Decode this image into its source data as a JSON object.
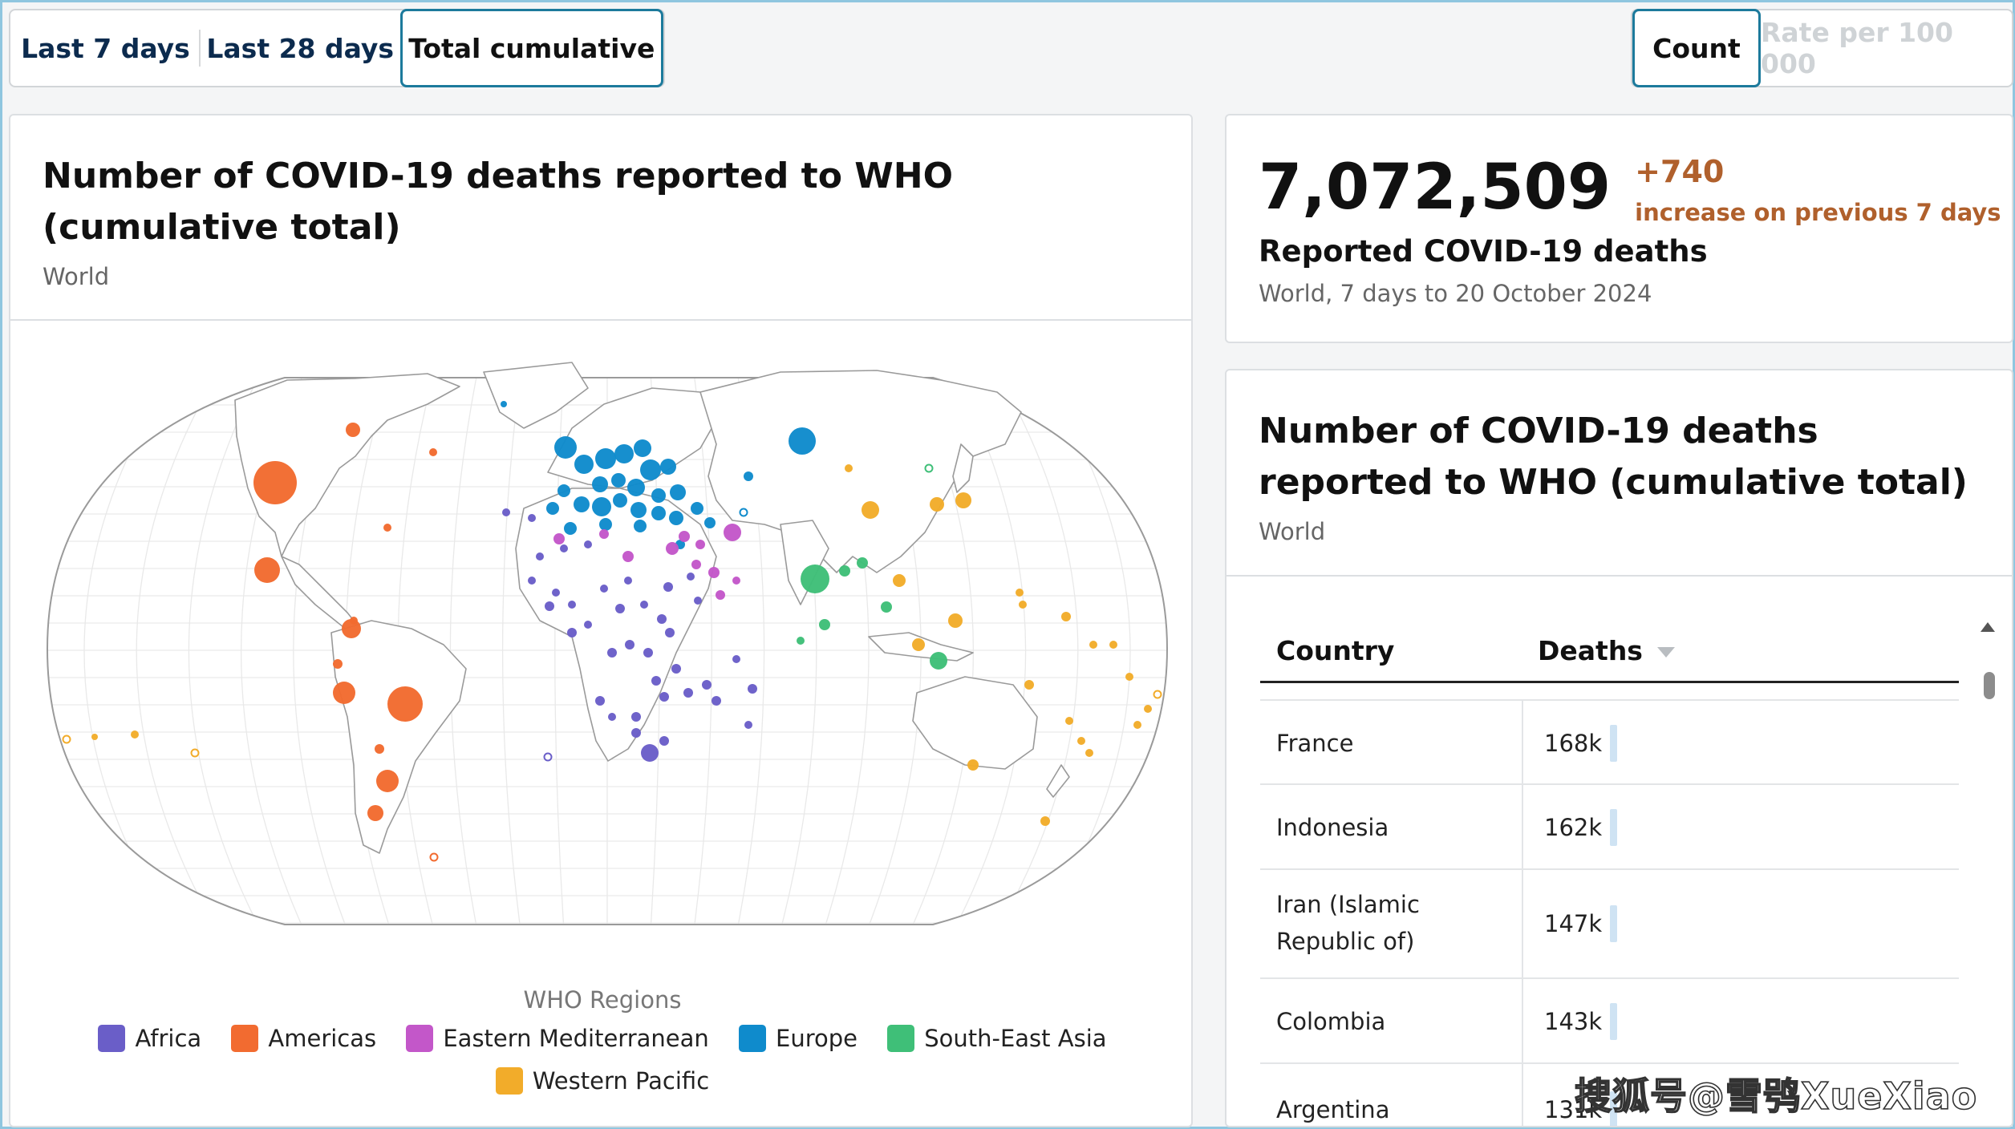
{
  "period_tabs": [
    "Last 7 days",
    "Last 28 days",
    "Total cumulative"
  ],
  "active_period": "Total cumulative",
  "metric_tabs": [
    "Count",
    "Rate per 100 000"
  ],
  "active_metric": "Count",
  "map_card": {
    "title": "Number of COVID-19 deaths reported to WHO (cumulative total)",
    "subtitle": "World",
    "legend_title": "WHO Regions",
    "legend": [
      {
        "name": "Africa",
        "color": "#6a5ec8"
      },
      {
        "name": "Americas",
        "color": "#f26b30"
      },
      {
        "name": "Eastern Mediterranean",
        "color": "#c357c9"
      },
      {
        "name": "Europe",
        "color": "#0f8bcc"
      },
      {
        "name": "South-East Asia",
        "color": "#3fbf78"
      },
      {
        "name": "Western Pacific",
        "color": "#f2ac2a"
      }
    ]
  },
  "stat_card": {
    "value": "7,072,509",
    "delta": "+740",
    "delta_text": "increase on previous 7 days",
    "label": "Reported COVID-19 deaths",
    "meta": "World, 7 days to 20 October 2024"
  },
  "table_card": {
    "title": "Number of COVID-19 deaths reported to WHO (cumulative total)",
    "subtitle": "World",
    "columns": [
      "Country",
      "Deaths"
    ],
    "rows": [
      {
        "country": "France",
        "deaths": "168k"
      },
      {
        "country": "Indonesia",
        "deaths": "162k"
      },
      {
        "country": "Iran (Islamic Republic of)",
        "deaths": "147k"
      },
      {
        "country": "Colombia",
        "deaths": "143k"
      },
      {
        "country": "Argentina",
        "deaths": "131k"
      }
    ]
  },
  "watermark": "搜狐号@雪鸮XueXiao",
  "icons": {
    "sort": "sort-down-icon",
    "scroll_up": "scroll-up-arrow-icon"
  }
}
